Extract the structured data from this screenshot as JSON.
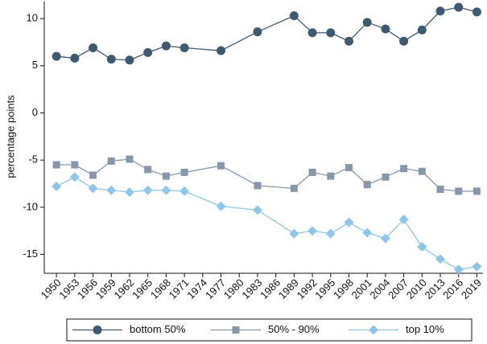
{
  "chart_data": {
    "type": "line",
    "ylabel": "percentage points",
    "x": [
      1950,
      1953,
      1956,
      1959,
      1962,
      1965,
      1968,
      1971,
      1977,
      1983,
      1989,
      1992,
      1995,
      1998,
      2001,
      2004,
      2007,
      2010,
      2013,
      2016,
      2019
    ],
    "series": [
      {
        "name": "bottom 50%",
        "color": "#3d5a72",
        "marker": "circle",
        "values": [
          6.0,
          5.8,
          6.9,
          5.7,
          5.6,
          6.4,
          7.1,
          6.9,
          6.6,
          8.6,
          10.3,
          8.5,
          8.5,
          7.6,
          9.6,
          8.9,
          7.6,
          8.8,
          10.8,
          11.2,
          10.7
        ]
      },
      {
        "name": "50% - 90%",
        "color": "#8797ab",
        "marker": "square",
        "values": [
          -5.5,
          -5.5,
          -6.6,
          -5.1,
          -4.9,
          -6.0,
          -6.7,
          -6.3,
          -5.6,
          -7.7,
          -8.0,
          -6.3,
          -6.7,
          -5.8,
          -7.6,
          -6.8,
          -5.9,
          -6.2,
          -8.1,
          -8.3,
          -8.3
        ]
      },
      {
        "name": "top 10%",
        "color": "#8ec6ea",
        "marker": "diamond",
        "values": [
          -7.8,
          -6.8,
          -8.0,
          -8.2,
          -8.4,
          -8.2,
          -8.2,
          -8.3,
          -9.9,
          -10.3,
          -12.8,
          -12.5,
          -12.8,
          -11.6,
          -12.7,
          -13.3,
          -11.3,
          -14.2,
          -15.5,
          -16.6,
          -16.3
        ]
      }
    ],
    "xlim": [
      1948,
      2020
    ],
    "xticks": [
      1950,
      1953,
      1956,
      1959,
      1962,
      1965,
      1968,
      1971,
      1974,
      1977,
      1980,
      1983,
      1986,
      1989,
      1992,
      1995,
      1998,
      2001,
      2004,
      2007,
      2010,
      2013,
      2016,
      2019
    ],
    "ylim": [
      -17,
      11.8
    ],
    "yticks": [
      10,
      5,
      0,
      -5,
      -10,
      -15
    ],
    "grid": false,
    "legend": "bottom"
  }
}
